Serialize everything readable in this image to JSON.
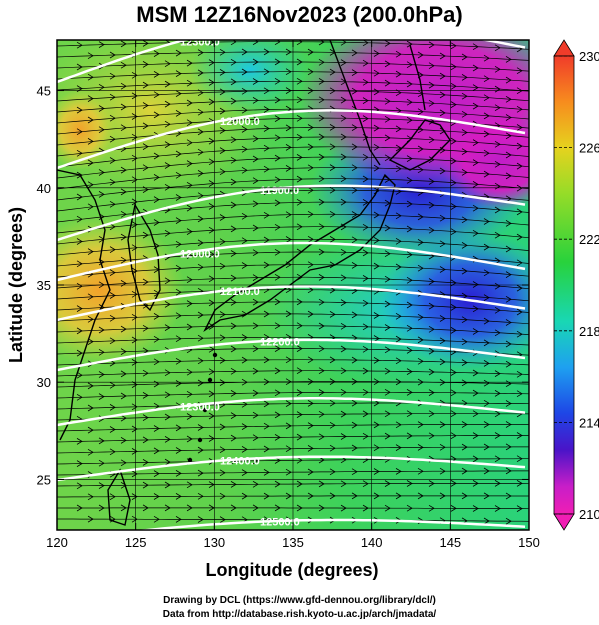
{
  "header": {
    "title": "MSM 12Z16Nov2023 (200.0hPa)"
  },
  "axes": {
    "xlabel": "Longitude (degrees)",
    "ylabel": "Latitude  (degrees)",
    "xticks": [
      "120",
      "125",
      "130",
      "135",
      "140",
      "145",
      "150"
    ],
    "yticks": [
      "25",
      "30",
      "35",
      "40",
      "45"
    ]
  },
  "colorbar": {
    "ticks": [
      "230",
      "226",
      "222",
      "218",
      "214",
      "210"
    ],
    "colors": [
      "#f03c2a",
      "#f78c1e",
      "#e6d21e",
      "#96dc28",
      "#28d23c",
      "#19d7b4",
      "#1ea0f0",
      "#1e46e6",
      "#5a14c8",
      "#c81ec8",
      "#f01eb4"
    ]
  },
  "contour_labels": [
    "12300.0",
    "12000.0",
    "11900.0",
    "12000.0",
    "12100.0",
    "12200.0",
    "12300.0",
    "12400.0",
    "12500.0"
  ],
  "footer": {
    "line1": "Drawing by DCL (https://www.gfd-dennou.org/library/dcl/)",
    "line2": "Data from http://database.rish.kyoto-u.ac.jp/arch/jmadata/"
  },
  "chart_data": {
    "type": "heatmap",
    "title": "MSM 12Z16Nov2023 (200.0hPa)",
    "xlabel": "Longitude (degrees)",
    "ylabel": "Latitude  (degrees)",
    "xlim": [
      120,
      150
    ],
    "ylim": [
      22.4,
      47.6
    ],
    "colorbar_range": [
      210,
      230
    ],
    "overlays": [
      "temperature shading",
      "geopotential height contours (white)",
      "wind streamlines (black)",
      "coastlines"
    ]
  }
}
